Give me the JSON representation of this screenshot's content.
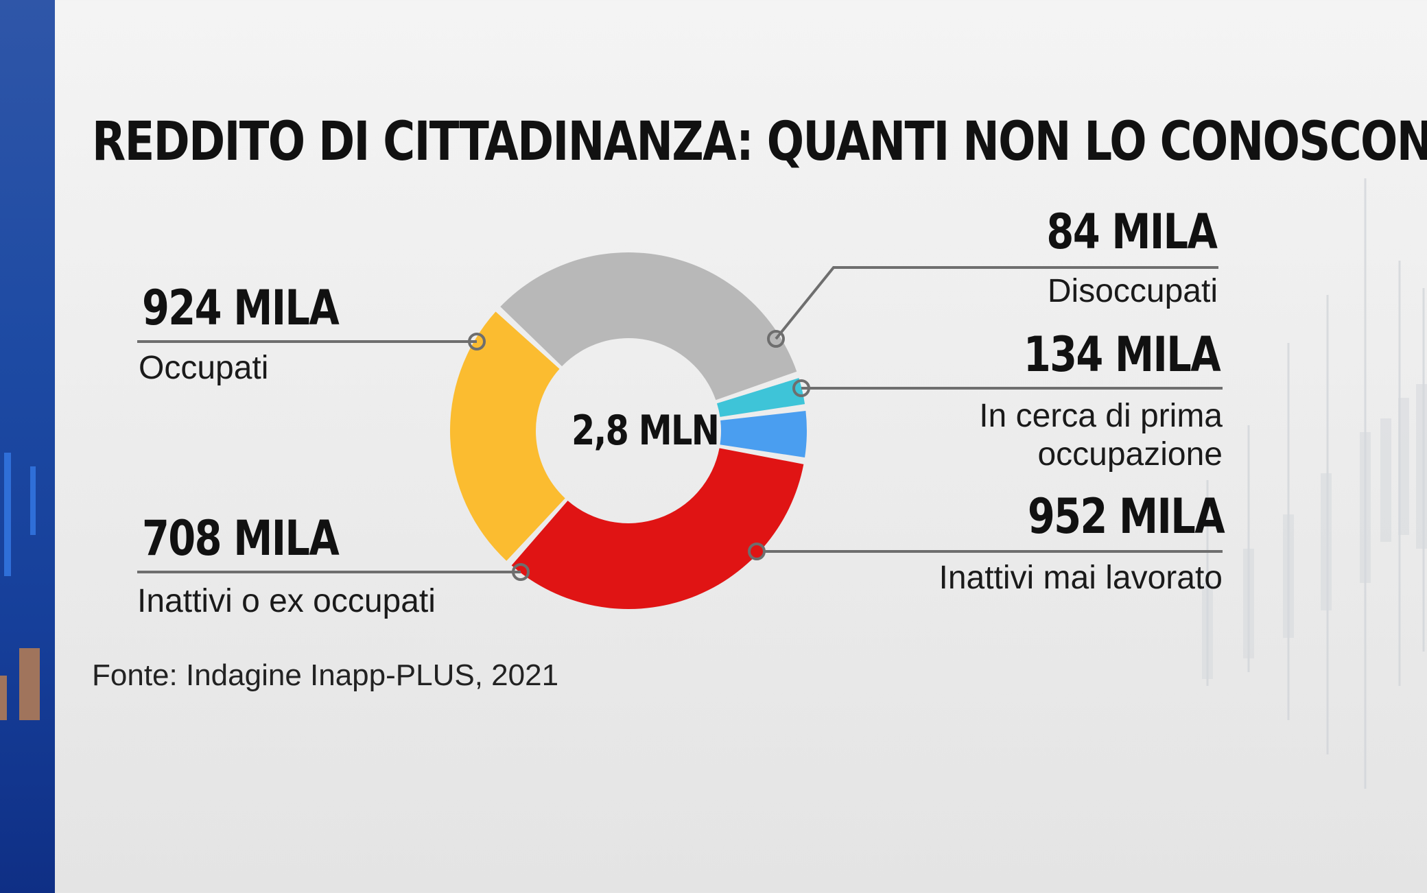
{
  "title": "REDDITO DI CITTADINANZA: QUANTI NON LO CONOSCONO",
  "source": "Fonte: Indagine Inapp-PLUS, 2021",
  "chart_data": {
    "type": "pie",
    "title": "REDDITO DI CITTADINANZA: QUANTI NON LO CONOSCONO",
    "center_label": "2,8 MLN",
    "unit": "mila",
    "slices": [
      {
        "name": "Occupati",
        "value": 924,
        "value_label": "924 MILA",
        "color": "#b8b8b8"
      },
      {
        "name": "Disoccupati",
        "value": 84,
        "value_label": "84 MILA",
        "color": "#3ec4d8"
      },
      {
        "name": "In cerca di prima occupazione",
        "value": 134,
        "value_label": "134 MILA",
        "color": "#4a9ef0"
      },
      {
        "name": "Inattivi mai lavorato",
        "value": 952,
        "value_label": "952 MILA",
        "color": "#e01414"
      },
      {
        "name": "Inattivi o ex occupati",
        "value": 708,
        "value_label": "708 MILA",
        "color": "#fbbc30"
      }
    ]
  },
  "labels": {
    "occupati": {
      "value": "924 MILA",
      "text": "Occupati"
    },
    "disoccupati": {
      "value": "84 MILA",
      "text": "Disoccupati"
    },
    "cerca": {
      "value": "134 MILA",
      "text_line1": "In cerca di prima",
      "text_line2": "occupazione"
    },
    "mai": {
      "value": "952 MILA",
      "text": "Inattivi mai lavorato"
    },
    "ex": {
      "value": "708 MILA",
      "text": "Inattivi o ex occupati"
    }
  }
}
